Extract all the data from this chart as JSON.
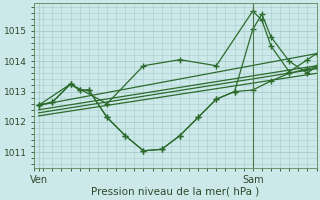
{
  "background_color": "#cce8e8",
  "grid_color": "#a8cccc",
  "line_color": "#2d6b2d",
  "xlabel": "Pression niveau de la mer( hPa )",
  "ylim": [
    1010.5,
    1015.9
  ],
  "yticks": [
    1011,
    1012,
    1013,
    1014,
    1015
  ],
  "xlim": [
    0,
    31
  ],
  "ven_x": 0.5,
  "sam_x": 24.0,
  "series": [
    {
      "x": [
        0.5,
        31
      ],
      "y": [
        1012.2,
        1013.6
      ],
      "marker": false,
      "lw": 0.9
    },
    {
      "x": [
        0.5,
        31
      ],
      "y": [
        1012.3,
        1013.75
      ],
      "marker": false,
      "lw": 0.9
    },
    {
      "x": [
        0.5,
        31
      ],
      "y": [
        1012.4,
        1013.85
      ],
      "marker": false,
      "lw": 0.9
    },
    {
      "x": [
        0.5,
        31
      ],
      "y": [
        1012.55,
        1014.25
      ],
      "marker": false,
      "lw": 0.9
    },
    {
      "x": [
        0.5,
        2,
        4,
        5,
        6,
        8,
        10,
        12,
        14,
        16,
        18,
        20,
        22,
        24,
        26,
        28,
        30,
        31
      ],
      "y": [
        1012.55,
        1012.65,
        1013.25,
        1013.05,
        1013.05,
        1012.15,
        1011.55,
        1011.05,
        1011.1,
        1011.55,
        1012.15,
        1012.75,
        1013.0,
        1013.05,
        1013.35,
        1013.6,
        1013.75,
        1013.8
      ],
      "marker": true,
      "lw": 0.9
    },
    {
      "x": [
        0.5,
        2,
        4,
        5,
        6,
        8,
        10,
        12,
        14,
        16,
        18,
        20,
        22,
        24,
        25,
        26,
        28,
        30,
        31
      ],
      "y": [
        1012.55,
        1012.65,
        1013.25,
        1013.05,
        1013.05,
        1012.15,
        1011.55,
        1011.05,
        1011.1,
        1011.55,
        1012.15,
        1012.75,
        1013.0,
        1015.05,
        1015.55,
        1014.8,
        1014.0,
        1013.6,
        1013.85
      ],
      "marker": true,
      "lw": 0.9
    },
    {
      "x": [
        0.5,
        4,
        8,
        12,
        16,
        20,
        24,
        25,
        26,
        28,
        30,
        31
      ],
      "y": [
        1012.55,
        1013.25,
        1012.6,
        1013.85,
        1014.05,
        1013.85,
        1015.65,
        1015.35,
        1014.5,
        1013.65,
        1014.05,
        1014.25
      ],
      "marker": true,
      "lw": 0.9
    }
  ]
}
